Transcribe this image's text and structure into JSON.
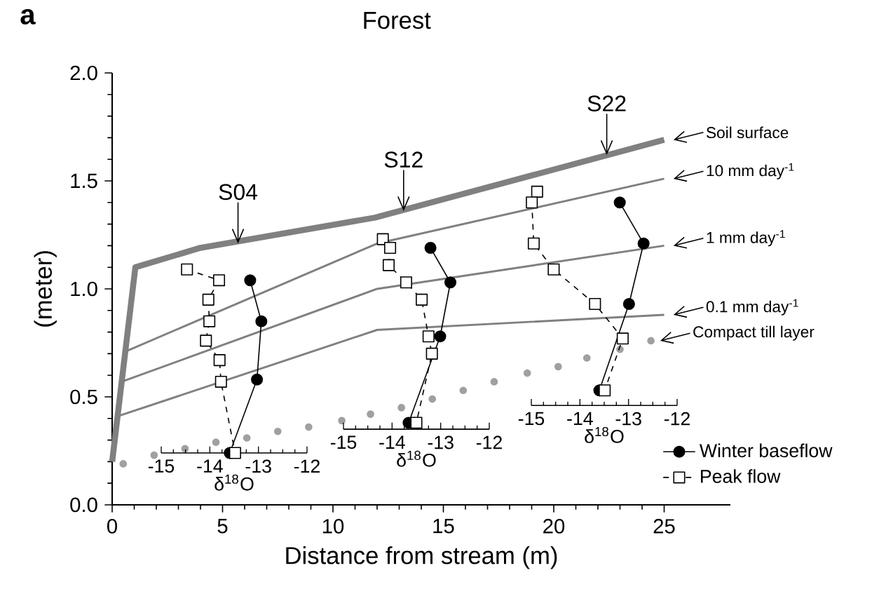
{
  "chart_data": [
    {
      "type": "line",
      "title": "Forest",
      "xlabel": "Distance from stream (m)",
      "ylabel": "(meter)",
      "xlim": [
        0,
        28
      ],
      "xticks": [
        0,
        5,
        10,
        15,
        20,
        25
      ],
      "ylim": [
        0,
        2
      ],
      "yticks": [
        {
          "value": 0,
          "label": "0.0"
        },
        {
          "value": 0.5,
          "label": "0.5"
        },
        {
          "value": 1,
          "label": "1.0"
        },
        {
          "value": 1.5,
          "label": "1.5"
        },
        {
          "value": 2,
          "label": "2.0"
        }
      ],
      "series": [
        {
          "name": "Soil surface",
          "color": "#808080",
          "x": [
            0,
            1.05,
            4.0,
            11.9,
            25
          ],
          "values": [
            0.2,
            1.1,
            1.19,
            1.33,
            1.69
          ]
        },
        {
          "name": "10 mm day$^{-1}$",
          "color": "#808080",
          "x": [
            0.6,
            12,
            25
          ],
          "values": [
            0.71,
            1.21,
            1.51
          ]
        },
        {
          "name": "1  mm day$^{-1}$",
          "color": "#808080",
          "x": [
            0.43,
            12,
            25
          ],
          "values": [
            0.57,
            1.0,
            1.2
          ]
        },
        {
          "name": "0.1 mm day$^{-1}$",
          "color": "#808080",
          "x": [
            0.25,
            12,
            25
          ],
          "values": [
            0.41,
            0.81,
            0.88
          ]
        },
        {
          "name": "Compact till layer",
          "type": "scatter",
          "marker": "circle",
          "color": "#a0a0a0",
          "x": [
            0.5,
            1.9,
            3.3,
            4.7,
            6.1,
            7.5,
            8.9,
            10.4,
            11.7,
            13.1,
            14.5,
            15.9,
            17.3,
            18.8,
            20.2,
            21.5,
            23.0,
            24.4
          ],
          "values": [
            0.19,
            0.23,
            0.26,
            0.29,
            0.31,
            0.34,
            0.36,
            0.39,
            0.42,
            0.45,
            0.49,
            0.53,
            0.57,
            0.61,
            0.64,
            0.68,
            0.72,
            0.76
          ]
        }
      ],
      "annotations": [
        "a",
        {
          "text": "S04",
          "x": 5.7,
          "y": 1.21
        },
        {
          "text": "S12",
          "x": 13.2,
          "y": 1.36
        },
        {
          "text": "S22",
          "x": 22.4,
          "y": 1.62
        }
      ]
    },
    {
      "type": "line",
      "xlabel": "δ$^{18}$O",
      "xlim": [
        -15,
        -12
      ],
      "xticks": [
        -15,
        -14,
        -13,
        -12
      ],
      "ylim": [
        0,
        2
      ],
      "tick_labels": "x",
      "series": [
        {
          "color": "#000000",
          "marker": "circle",
          "line_style": "solid",
          "x": [
            -13.17,
            -12.94,
            -13.03,
            -13.59
          ],
          "values": [
            1.04,
            0.85,
            0.58,
            0.24
          ]
        },
        {
          "color": "#000000",
          "marker": "square",
          "line_style": "dashed",
          "x": [
            -14.47,
            -13.81,
            -14.03,
            -14.01,
            -14.08,
            -13.8,
            -13.77,
            -13.48
          ],
          "values": [
            1.09,
            1.04,
            0.95,
            0.85,
            0.76,
            0.67,
            0.57,
            0.24
          ]
        }
      ]
    },
    {
      "type": "line",
      "xlabel": "δ$^{18}$O",
      "xlim": [
        -15,
        -12
      ],
      "xticks": [
        -15,
        -14,
        -13,
        -12
      ],
      "ylim": [
        0,
        2
      ],
      "tick_labels": "x",
      "series": [
        {
          "color": "#000000",
          "marker": "circle",
          "line_style": "solid",
          "x": [
            -13.21,
            -12.8,
            -13.01,
            -13.66
          ],
          "values": [
            1.19,
            1.03,
            0.78,
            0.38
          ]
        },
        {
          "color": "#000000",
          "marker": "square",
          "line_style": "dashed",
          "x": [
            -14.19,
            -14.04,
            -14.07,
            -13.71,
            -13.39,
            -13.25,
            -13.18,
            -13.5
          ],
          "values": [
            1.23,
            1.19,
            1.11,
            1.03,
            0.95,
            0.78,
            0.7,
            0.38
          ]
        }
      ]
    },
    {
      "type": "line",
      "xlabel": "δ$^{18}$O",
      "xlim": [
        -15,
        -12
      ],
      "xticks": [
        -15,
        -14,
        -13,
        -12
      ],
      "ylim": [
        0,
        2
      ],
      "tick_labels": "x",
      "legend": "bottom right",
      "series": [
        {
          "name": "Winter baseflow",
          "color": "#000000",
          "marker": "circle",
          "line_style": "solid",
          "x": [
            -13.18,
            -12.69,
            -12.99,
            -13.6
          ],
          "values": [
            1.4,
            1.21,
            0.93,
            0.53
          ]
        },
        {
          "name": "Peak flow",
          "color": "#000000",
          "marker": "square",
          "line_style": "dashed",
          "x": [
            -14.88,
            -14.99,
            -14.95,
            -14.54,
            -13.69,
            -13.12,
            -13.49
          ],
          "values": [
            1.45,
            1.4,
            1.21,
            1.09,
            0.93,
            0.77,
            0.53
          ]
        }
      ]
    }
  ]
}
